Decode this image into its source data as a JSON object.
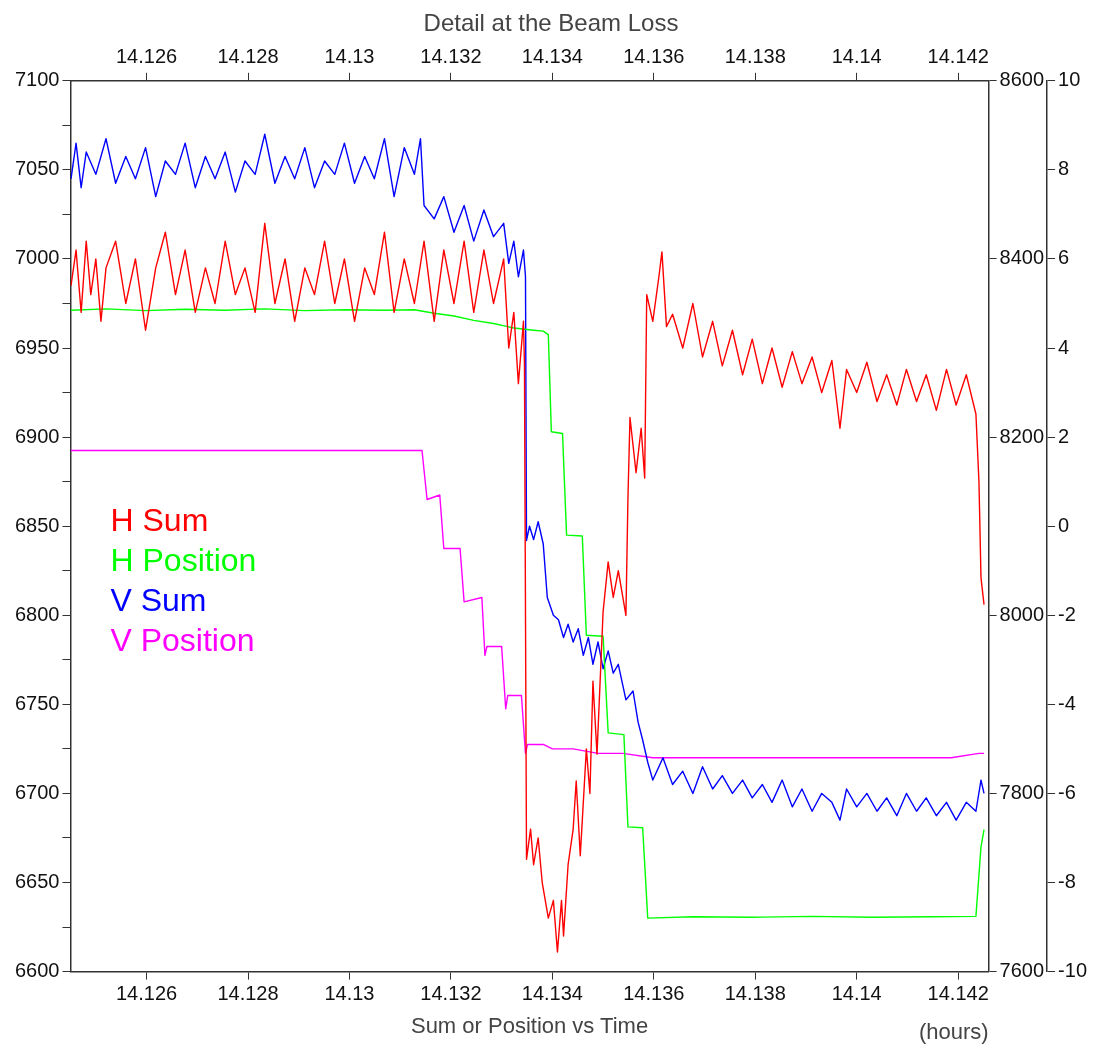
{
  "chart_data": {
    "type": "line",
    "title": "Detail at the Beam Loss",
    "xlabel": "Sum or Position vs Time",
    "annotations": [
      "(hours)"
    ],
    "xlim": [
      14.1245,
      14.1426
    ],
    "xticks": [
      14.126,
      14.128,
      14.13,
      14.132,
      14.134,
      14.136,
      14.138,
      14.14,
      14.142
    ],
    "x2lim": [
      14.1245,
      14.1426
    ],
    "x2ticks": [
      14.126,
      14.128,
      14.13,
      14.132,
      14.134,
      14.136,
      14.138,
      14.14,
      14.142
    ],
    "ylim": [
      6600,
      7100
    ],
    "yticks": [
      6600,
      {
        "value": 6625,
        "label": null
      },
      6650,
      {
        "value": 6675,
        "label": null
      },
      6700,
      {
        "value": 6725,
        "label": null
      },
      6750,
      {
        "value": 6775,
        "label": null
      },
      6800,
      {
        "value": 6825,
        "label": null
      },
      6850,
      {
        "value": 6875,
        "label": null
      },
      6900,
      {
        "value": 6925,
        "label": null
      },
      6950,
      {
        "value": 6975,
        "label": null
      },
      7000,
      {
        "value": 7025,
        "label": null
      },
      7050,
      {
        "value": 7075,
        "label": null
      },
      7100
    ],
    "y2lim": [
      7600,
      8600
    ],
    "y2ticks": [
      7600,
      7800,
      8000,
      8200,
      8400,
      8600
    ],
    "y3lim": [
      -10,
      10
    ],
    "y3ticks": [
      -10,
      -8,
      -6,
      -4,
      -2,
      0,
      2,
      4,
      6,
      8,
      10
    ],
    "grid": false,
    "legend": "left",
    "marker": "none",
    "line_style": "solid",
    "series": [
      {
        "name": "H Sum",
        "color": "#ff0000",
        "x": [
          14.12451,
          14.12461,
          14.12471,
          14.12481,
          14.1249,
          14.125,
          14.1251,
          14.1252,
          14.12539,
          14.12559,
          14.12578,
          14.12598,
          14.12618,
          14.12637,
          14.12657,
          14.12676,
          14.12696,
          14.12716,
          14.12735,
          14.12755,
          14.12775,
          14.12794,
          14.12814,
          14.12833,
          14.12853,
          14.12873,
          14.12892,
          14.12912,
          14.12931,
          14.12951,
          14.12971,
          14.1299,
          14.1301,
          14.1303,
          14.13049,
          14.13069,
          14.13088,
          14.13108,
          14.13128,
          14.13147,
          14.13167,
          14.13186,
          14.13206,
          14.13226,
          14.13245,
          14.13265,
          14.13284,
          14.13304,
          14.13314,
          14.13324,
          14.13333,
          14.13343,
          14.13345,
          14.13349,
          14.13357,
          14.13363,
          14.13372,
          14.1338,
          14.13392,
          14.13402,
          14.1341,
          14.13418,
          14.13422,
          14.13431,
          14.13441,
          14.13447,
          14.13455,
          14.13467,
          14.13474,
          14.1348,
          14.13488,
          14.135,
          14.1351,
          14.1352,
          14.1353,
          14.13545,
          14.13549,
          14.13553,
          14.13565,
          14.13575,
          14.13582,
          14.13586,
          14.13598,
          14.1361,
          14.13616,
          14.13625,
          14.13637,
          14.13657,
          14.13677,
          14.13696,
          14.13716,
          14.13735,
          14.13755,
          14.13775,
          14.13794,
          14.13814,
          14.13833,
          14.13853,
          14.13873,
          14.13892,
          14.13912,
          14.13931,
          14.13951,
          14.13967,
          14.1398,
          14.14,
          14.1402,
          14.1404,
          14.14059,
          14.14079,
          14.14098,
          14.14118,
          14.14137,
          14.14157,
          14.14177,
          14.14196,
          14.14216,
          14.14235,
          14.14241,
          14.14245,
          14.14251
        ],
        "values": [
          6985,
          7005,
          6970,
          7010,
          6980,
          7000,
          6965,
          6995,
          7010,
          6975,
          7000,
          6960,
          6995,
          7015,
          6980,
          7005,
          6970,
          6995,
          6975,
          7010,
          6980,
          6995,
          6970,
          7020,
          6975,
          7000,
          6965,
          6995,
          6980,
          7010,
          6975,
          7000,
          6965,
          6995,
          6980,
          7015,
          6970,
          7000,
          6975,
          7010,
          6965,
          7005,
          6975,
          7010,
          6970,
          7005,
          6975,
          7000,
          6950,
          6970,
          6930,
          6965,
          6940,
          6663,
          6680,
          6660,
          6675,
          6650,
          6630,
          6640,
          6611,
          6640,
          6620,
          6660,
          6680,
          6707,
          6665,
          6725,
          6700,
          6763,
          6722,
          6802,
          6830,
          6810,
          6825,
          6800,
          6866,
          6911,
          6880,
          6905,
          6877,
          6980,
          6965,
          6990,
          7004,
          6962,
          6969,
          6950,
          6975,
          6945,
          6965,
          6940,
          6960,
          6935,
          6955,
          6930,
          6950,
          6928,
          6948,
          6930,
          6945,
          6925,
          6943,
          6905,
          6938,
          6925,
          6942,
          6920,
          6935,
          6918,
          6938,
          6920,
          6935,
          6915,
          6938,
          6918,
          6935,
          6913,
          6875,
          6821,
          6806
        ]
      },
      {
        "name": "H Position",
        "color": "#00ff00",
        "axis": "y3",
        "x": [
          14.12451,
          14.1252,
          14.12598,
          14.12676,
          14.12755,
          14.12833,
          14.12912,
          14.1299,
          14.13069,
          14.13128,
          14.13167,
          14.13206,
          14.13245,
          14.13284,
          14.13324,
          14.13363,
          14.13382,
          14.13392,
          14.13398,
          14.1342,
          14.13428,
          14.13459,
          14.13467,
          14.135,
          14.1351,
          14.13541,
          14.13549,
          14.13578,
          14.13588,
          14.13677,
          14.13794,
          14.13912,
          14.1403,
          14.14147,
          14.14235,
          14.14245,
          14.14251
        ],
        "values": [
          4.85,
          4.88,
          4.84,
          4.87,
          4.85,
          4.88,
          4.84,
          4.86,
          4.85,
          4.86,
          4.78,
          4.72,
          4.62,
          4.55,
          4.45,
          4.4,
          4.38,
          4.3,
          2.12,
          2.08,
          -0.2,
          -0.22,
          -2.45,
          -2.47,
          -4.64,
          -4.68,
          -6.75,
          -6.77,
          -8.8,
          -8.77,
          -8.78,
          -8.76,
          -8.78,
          -8.77,
          -8.76,
          -7.2,
          -6.81
        ]
      },
      {
        "name": "V Sum",
        "color": "#0000ff",
        "axis": "y2",
        "x": [
          14.12451,
          14.12461,
          14.12471,
          14.12481,
          14.125,
          14.1252,
          14.12539,
          14.12559,
          14.12578,
          14.12598,
          14.12618,
          14.12637,
          14.12657,
          14.12676,
          14.12696,
          14.12716,
          14.12735,
          14.12755,
          14.12775,
          14.12794,
          14.12814,
          14.12833,
          14.12853,
          14.12873,
          14.12892,
          14.12912,
          14.12931,
          14.12951,
          14.12971,
          14.1299,
          14.1301,
          14.1303,
          14.13049,
          14.13069,
          14.13088,
          14.13108,
          14.13128,
          14.1314,
          14.13147,
          14.13167,
          14.13186,
          14.13206,
          14.13226,
          14.13245,
          14.13265,
          14.13284,
          14.13304,
          14.13314,
          14.13324,
          14.13333,
          14.13343,
          14.13347,
          14.13349,
          14.13355,
          14.13363,
          14.13372,
          14.13382,
          14.1339,
          14.13402,
          14.13412,
          14.13422,
          14.13431,
          14.13441,
          14.13451,
          14.13461,
          14.13471,
          14.1348,
          14.1349,
          14.135,
          14.1351,
          14.1352,
          14.1353,
          14.13545,
          14.13559,
          14.13569,
          14.13578,
          14.13588,
          14.13598,
          14.13618,
          14.13637,
          14.13657,
          14.13677,
          14.13696,
          14.13716,
          14.13735,
          14.13755,
          14.13775,
          14.13794,
          14.13814,
          14.13833,
          14.13853,
          14.13873,
          14.13892,
          14.13912,
          14.13931,
          14.13951,
          14.13967,
          14.1398,
          14.14,
          14.1402,
          14.1404,
          14.14059,
          14.14079,
          14.14098,
          14.14118,
          14.14137,
          14.14157,
          14.14177,
          14.14196,
          14.14216,
          14.14235,
          14.14245,
          14.14251
        ],
        "values": [
          8490,
          8530,
          8480,
          8520,
          8495,
          8535,
          8485,
          8515,
          8490,
          8525,
          8470,
          8510,
          8495,
          8530,
          8480,
          8515,
          8490,
          8520,
          8475,
          8510,
          8495,
          8540,
          8485,
          8515,
          8490,
          8525,
          8480,
          8510,
          8495,
          8530,
          8485,
          8515,
          8490,
          8535,
          8470,
          8525,
          8495,
          8535,
          8460,
          8445,
          8470,
          8430,
          8460,
          8420,
          8455,
          8425,
          8440,
          8395,
          8420,
          8380,
          8410,
          8380,
          8084,
          8100,
          8085,
          8105,
          8080,
          8020,
          8000,
          7995,
          7975,
          7990,
          7970,
          7985,
          7955,
          7975,
          7945,
          7970,
          7940,
          7960,
          7935,
          7945,
          7905,
          7915,
          7880,
          7860,
          7835,
          7815,
          7840,
          7810,
          7825,
          7800,
          7830,
          7805,
          7820,
          7800,
          7815,
          7795,
          7810,
          7790,
          7815,
          7785,
          7805,
          7780,
          7800,
          7790,
          7770,
          7805,
          7785,
          7800,
          7780,
          7795,
          7775,
          7800,
          7780,
          7795,
          7775,
          7790,
          7770,
          7790,
          7780,
          7815,
          7800
        ]
      },
      {
        "name": "V Position",
        "color": "#ff00ff",
        "axis": "y3",
        "x": [
          14.12451,
          14.12618,
          14.12814,
          14.1301,
          14.13143,
          14.13153,
          14.13178,
          14.13186,
          14.13218,
          14.13226,
          14.13261,
          14.13267,
          14.13271,
          14.133,
          14.13308,
          14.13312,
          14.13339,
          14.13347,
          14.13351,
          14.13382,
          14.134,
          14.13441,
          14.1349,
          14.13539,
          14.13598,
          14.13794,
          14.1399,
          14.14186,
          14.14241,
          14.14251
        ],
        "values": [
          1.7,
          1.7,
          1.7,
          1.7,
          1.7,
          0.6,
          0.7,
          -0.5,
          -0.5,
          -1.7,
          -1.6,
          -2.9,
          -2.7,
          -2.7,
          -4.1,
          -3.8,
          -3.8,
          -5.1,
          -4.9,
          -4.9,
          -5.0,
          -5.0,
          -5.1,
          -5.1,
          -5.2,
          -5.2,
          -5.2,
          -5.2,
          -5.1,
          -5.1
        ]
      }
    ]
  }
}
